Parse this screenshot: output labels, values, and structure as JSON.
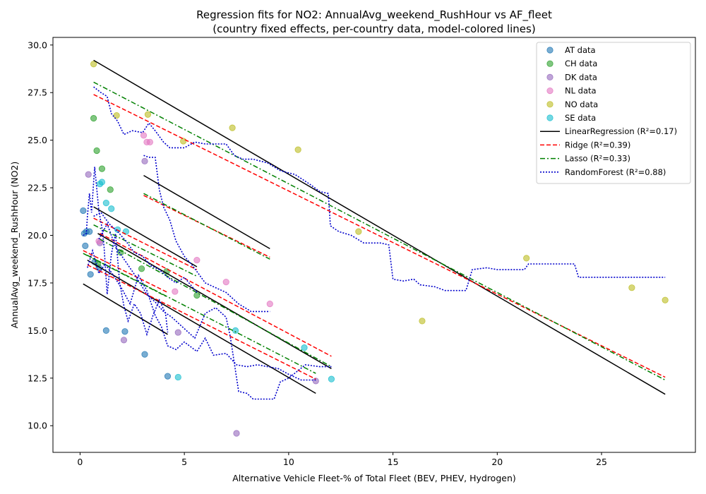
{
  "chart_data": {
    "type": "scatter",
    "title": "Regression fits for NO2: AnnualAvg_weekend_RushHour vs AF_fleet",
    "subtitle": "(country fixed effects, per-country data, model-colored lines)",
    "xlabel": "Alternative Vehicle Fleet-% of Total Fleet (BEV, PHEV, Hydrogen)",
    "ylabel": "AnnualAvg_weekend_RushHour (NO2)",
    "xlim": [
      -1.3,
      29.5
    ],
    "ylim": [
      8.6,
      30.4
    ],
    "xticks": [
      0,
      5,
      10,
      15,
      20,
      25
    ],
    "xtick_labels": [
      "0",
      "5",
      "10",
      "15",
      "20",
      "25"
    ],
    "yticks": [
      10.0,
      12.5,
      15.0,
      17.5,
      20.0,
      22.5,
      25.0,
      27.5,
      30.0
    ],
    "ytick_labels": [
      "10.0",
      "12.5",
      "15.0",
      "17.5",
      "20.0",
      "22.5",
      "25.0",
      "27.5",
      "30.0"
    ],
    "grid": false,
    "legend_position": "top-right",
    "series": [
      {
        "name": "AT data",
        "kind": "scatter",
        "color": "#1f77b4",
        "points": [
          [
            0.15,
            21.3
          ],
          [
            0.2,
            20.1
          ],
          [
            0.25,
            19.45
          ],
          [
            0.3,
            20.2
          ],
          [
            0.45,
            20.2
          ],
          [
            0.5,
            17.95
          ],
          [
            0.7,
            18.6
          ],
          [
            1.25,
            15.0
          ],
          [
            2.15,
            14.95
          ],
          [
            3.1,
            13.75
          ],
          [
            4.2,
            12.6
          ],
          [
            0.9,
            18.3
          ]
        ]
      },
      {
        "name": "CH data",
        "kind": "scatter",
        "color": "#2ca02c",
        "points": [
          [
            0.65,
            26.15
          ],
          [
            0.8,
            24.45
          ],
          [
            1.05,
            23.5
          ],
          [
            1.45,
            22.4
          ],
          [
            1.95,
            19.1
          ],
          [
            2.95,
            18.25
          ],
          [
            4.15,
            18.1
          ],
          [
            5.6,
            16.85
          ],
          [
            0.85,
            18.5
          ]
        ]
      },
      {
        "name": "DK data",
        "kind": "scatter",
        "color": "#9467bd",
        "points": [
          [
            0.4,
            23.2
          ],
          [
            0.95,
            19.6
          ],
          [
            2.1,
            14.5
          ],
          [
            3.1,
            23.9
          ],
          [
            4.7,
            14.9
          ],
          [
            7.5,
            9.6
          ],
          [
            11.3,
            12.35
          ]
        ]
      },
      {
        "name": "NL data",
        "kind": "scatter",
        "color": "#e377c2",
        "points": [
          [
            3.05,
            25.25
          ],
          [
            3.2,
            24.9
          ],
          [
            3.35,
            24.9
          ],
          [
            4.55,
            17.05
          ],
          [
            5.6,
            18.7
          ],
          [
            7.0,
            17.55
          ],
          [
            9.1,
            16.4
          ],
          [
            0.9,
            19.7
          ]
        ]
      },
      {
        "name": "NO data",
        "kind": "scatter",
        "color": "#bcbd22",
        "points": [
          [
            0.65,
            29.0
          ],
          [
            1.75,
            26.3
          ],
          [
            3.25,
            26.35
          ],
          [
            4.95,
            24.95
          ],
          [
            7.3,
            25.65
          ],
          [
            10.45,
            24.5
          ],
          [
            13.35,
            20.2
          ],
          [
            16.4,
            15.5
          ],
          [
            21.4,
            18.8
          ],
          [
            26.45,
            17.25
          ],
          [
            28.05,
            16.6
          ]
        ]
      },
      {
        "name": "SE data",
        "kind": "scatter",
        "color": "#17becf",
        "points": [
          [
            0.95,
            22.7
          ],
          [
            1.05,
            22.8
          ],
          [
            1.25,
            21.7
          ],
          [
            1.5,
            21.4
          ],
          [
            1.8,
            20.3
          ],
          [
            2.2,
            20.2
          ],
          [
            7.45,
            15.0
          ],
          [
            10.75,
            14.1
          ],
          [
            12.05,
            12.45
          ],
          [
            4.7,
            12.55
          ]
        ]
      },
      {
        "name": "LinearRegression (R²=0.17)",
        "kind": "line",
        "color": "#000000",
        "dash": "solid",
        "segments": [
          [
            [
              0.15,
              17.45
            ],
            [
              4.2,
              14.8
            ]
          ],
          [
            [
              0.35,
              18.7
            ],
            [
              11.3,
              11.7
            ]
          ],
          [
            [
              0.65,
              21.5
            ],
            [
              5.6,
              18.35
            ]
          ],
          [
            [
              0.85,
              20.1
            ],
            [
              12.05,
              13.0
            ]
          ],
          [
            [
              3.05,
              23.15
            ],
            [
              9.1,
              19.3
            ]
          ],
          [
            [
              0.65,
              29.2
            ],
            [
              28.05,
              11.65
            ]
          ]
        ]
      },
      {
        "name": "Ridge (R²=0.39)",
        "kind": "line",
        "color": "#ff0000",
        "dash": "dashed",
        "segments": [
          [
            [
              0.15,
              19.2
            ],
            [
              4.2,
              17.0
            ]
          ],
          [
            [
              0.35,
              18.45
            ],
            [
              11.3,
              12.45
            ]
          ],
          [
            [
              0.65,
              20.9
            ],
            [
              5.6,
              18.2
            ]
          ],
          [
            [
              0.95,
              20.1
            ],
            [
              12.05,
              13.65
            ]
          ],
          [
            [
              3.05,
              22.1
            ],
            [
              9.1,
              18.85
            ]
          ],
          [
            [
              0.65,
              27.4
            ],
            [
              28.05,
              12.55
            ]
          ]
        ]
      },
      {
        "name": "Lasso (R²=0.33)",
        "kind": "line",
        "color": "#008000",
        "dash": "dashdot",
        "segments": [
          [
            [
              0.15,
              19.05
            ],
            [
              4.2,
              16.75
            ]
          ],
          [
            [
              0.35,
              18.95
            ],
            [
              11.3,
              12.75
            ]
          ],
          [
            [
              0.65,
              20.55
            ],
            [
              5.6,
              17.85
            ]
          ],
          [
            [
              0.95,
              19.8
            ],
            [
              12.05,
              13.1
            ]
          ],
          [
            [
              3.05,
              22.2
            ],
            [
              9.1,
              18.75
            ]
          ],
          [
            [
              0.65,
              28.05
            ],
            [
              28.05,
              12.4
            ]
          ]
        ]
      },
      {
        "name": "RandomForest (R²=0.88)",
        "kind": "line",
        "color": "#0000cc",
        "dash": "dotted",
        "segments": [
          [
            [
              0.15,
              20.0
            ],
            [
              0.3,
              20.1
            ],
            [
              0.35,
              21.0
            ],
            [
              0.45,
              22.2
            ],
            [
              0.55,
              21.2
            ],
            [
              0.7,
              23.6
            ],
            [
              0.9,
              21.3
            ],
            [
              1.05,
              20.4
            ],
            [
              1.15,
              19.4
            ],
            [
              1.3,
              16.9
            ],
            [
              1.5,
              19.0
            ],
            [
              1.7,
              20.1
            ],
            [
              1.9,
              17.5
            ],
            [
              2.1,
              16.3
            ],
            [
              2.3,
              15.5
            ],
            [
              2.6,
              16.4
            ],
            [
              2.9,
              15.9
            ],
            [
              3.2,
              14.8
            ],
            [
              3.5,
              15.8
            ],
            [
              3.8,
              16.6
            ],
            [
              4.1,
              15.9
            ],
            [
              4.2,
              14.9
            ]
          ],
          [
            [
              0.35,
              18.3
            ],
            [
              0.6,
              19.2
            ],
            [
              0.9,
              18.0
            ],
            [
              1.2,
              18.5
            ],
            [
              1.6,
              17.9
            ],
            [
              2.0,
              17.2
            ],
            [
              2.4,
              16.4
            ],
            [
              2.8,
              17.9
            ],
            [
              3.2,
              17.1
            ],
            [
              3.6,
              15.8
            ],
            [
              3.9,
              15.2
            ],
            [
              4.2,
              14.2
            ],
            [
              4.6,
              14.0
            ],
            [
              5.0,
              14.4
            ],
            [
              5.6,
              13.9
            ],
            [
              6.0,
              14.6
            ],
            [
              6.4,
              13.7
            ],
            [
              7.0,
              13.8
            ],
            [
              7.5,
              13.2
            ],
            [
              8.0,
              13.1
            ],
            [
              8.5,
              13.2
            ],
            [
              9.0,
              13.1
            ],
            [
              9.5,
              13.0
            ],
            [
              10.0,
              12.7
            ],
            [
              10.6,
              12.4
            ],
            [
              11.3,
              12.4
            ]
          ],
          [
            [
              0.65,
              21.0
            ],
            [
              1.0,
              21.2
            ],
            [
              1.4,
              20.6
            ],
            [
              1.8,
              20.2
            ],
            [
              2.2,
              19.7
            ],
            [
              2.6,
              19.1
            ],
            [
              3.0,
              18.9
            ],
            [
              3.4,
              18.4
            ],
            [
              3.8,
              18.2
            ],
            [
              4.2,
              17.8
            ],
            [
              4.6,
              17.5
            ],
            [
              5.0,
              17.8
            ],
            [
              5.6,
              17.0
            ]
          ],
          [
            [
              0.9,
              19.8
            ],
            [
              1.3,
              20.6
            ],
            [
              1.7,
              19.4
            ],
            [
              2.2,
              18.6
            ],
            [
              2.7,
              17.8
            ],
            [
              3.2,
              16.9
            ],
            [
              3.6,
              16.5
            ],
            [
              4.0,
              16.0
            ],
            [
              4.4,
              15.7
            ],
            [
              4.8,
              15.3
            ],
            [
              5.5,
              14.6
            ],
            [
              6.0,
              15.9
            ],
            [
              6.5,
              16.2
            ],
            [
              7.0,
              15.7
            ],
            [
              7.2,
              14.7
            ],
            [
              7.6,
              11.8
            ],
            [
              8.0,
              11.7
            ],
            [
              8.3,
              11.4
            ],
            [
              9.3,
              11.4
            ],
            [
              9.6,
              12.3
            ],
            [
              10.0,
              12.5
            ],
            [
              10.8,
              13.2
            ],
            [
              11.5,
              13.1
            ],
            [
              12.05,
              13.1
            ]
          ],
          [
            [
              3.05,
              24.2
            ],
            [
              3.3,
              24.1
            ],
            [
              3.6,
              24.1
            ],
            [
              3.8,
              22.4
            ],
            [
              4.0,
              21.5
            ],
            [
              4.3,
              20.8
            ],
            [
              4.6,
              19.7
            ],
            [
              5.0,
              18.9
            ],
            [
              5.4,
              18.4
            ],
            [
              6.0,
              17.5
            ],
            [
              6.6,
              17.2
            ],
            [
              7.0,
              17.0
            ],
            [
              7.6,
              16.4
            ],
            [
              8.2,
              16.0
            ],
            [
              9.1,
              16.0
            ]
          ],
          [
            [
              0.65,
              27.8
            ],
            [
              1.0,
              27.5
            ],
            [
              1.3,
              27.3
            ],
            [
              1.5,
              26.4
            ],
            [
              1.8,
              26.0
            ],
            [
              2.1,
              25.3
            ],
            [
              2.5,
              25.5
            ],
            [
              3.0,
              25.4
            ],
            [
              3.3,
              25.9
            ],
            [
              3.6,
              25.5
            ],
            [
              4.0,
              24.9
            ],
            [
              4.3,
              24.6
            ],
            [
              5.0,
              24.6
            ],
            [
              5.5,
              24.9
            ],
            [
              6.0,
              24.8
            ],
            [
              7.0,
              24.8
            ],
            [
              7.4,
              24.2
            ],
            [
              7.8,
              24.0
            ],
            [
              8.3,
              24.0
            ],
            [
              9.0,
              23.8
            ],
            [
              9.6,
              23.4
            ],
            [
              10.3,
              23.2
            ],
            [
              11.0,
              22.7
            ],
            [
              11.5,
              22.3
            ],
            [
              11.9,
              22.2
            ],
            [
              12.0,
              20.5
            ],
            [
              12.4,
              20.2
            ],
            [
              13.0,
              20.0
            ],
            [
              13.6,
              19.6
            ],
            [
              14.4,
              19.6
            ],
            [
              14.8,
              19.5
            ],
            [
              15.0,
              17.7
            ],
            [
              15.5,
              17.6
            ],
            [
              16.0,
              17.7
            ],
            [
              16.3,
              17.4
            ],
            [
              17.0,
              17.3
            ],
            [
              17.5,
              17.1
            ],
            [
              18.5,
              17.1
            ],
            [
              18.8,
              18.2
            ],
            [
              19.5,
              18.3
            ],
            [
              20.0,
              18.2
            ],
            [
              21.3,
              18.2
            ],
            [
              21.5,
              18.5
            ],
            [
              23.7,
              18.5
            ],
            [
              23.9,
              17.8
            ],
            [
              28.05,
              17.8
            ]
          ]
        ]
      }
    ]
  }
}
